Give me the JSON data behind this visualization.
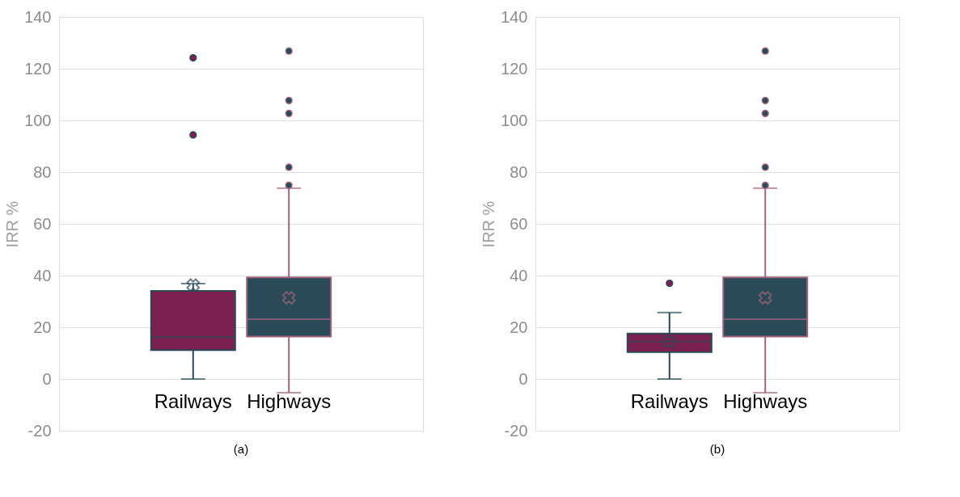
{
  "chart_data": [
    {
      "type": "box",
      "title": "(a)",
      "ylabel": "IRR %",
      "categories": [
        "Railways",
        "Highways"
      ],
      "colors": [
        "#7b1f4e",
        "#2a4a57"
      ],
      "boxes": [
        {
          "low": 0,
          "q1": 11.2,
          "median": 16.2,
          "q3": 34.1,
          "high": 36.9,
          "mean": 36.3,
          "outliers": [
            94.4,
            124.2
          ]
        },
        {
          "low": -5.3,
          "q1": 16.4,
          "median": 23.1,
          "q3": 39.3,
          "high": 73.8,
          "mean": 31.4,
          "outliers": [
            74.9,
            81.9,
            102.7,
            107.7,
            126.8
          ]
        }
      ],
      "ylim": [
        -20,
        140
      ],
      "yticks": [
        -20,
        0,
        20,
        40,
        60,
        80,
        100,
        120,
        140
      ],
      "grid": "y"
    },
    {
      "type": "box",
      "title": "(b)",
      "ylabel": "IRR %",
      "categories": [
        "Railways",
        "Highways"
      ],
      "colors": [
        "#7b1f4e",
        "#2a4a57"
      ],
      "boxes": [
        {
          "low": 0,
          "q1": 10.4,
          "median": 14.5,
          "q3": 17.6,
          "high": 25.7,
          "mean": 14.5,
          "outliers": [
            37.0
          ]
        },
        {
          "low": -5.3,
          "q1": 16.4,
          "median": 23.1,
          "q3": 39.3,
          "high": 73.8,
          "mean": 31.4,
          "outliers": [
            74.9,
            81.9,
            102.7,
            107.7,
            126.8
          ]
        }
      ],
      "ylim": [
        -20,
        140
      ],
      "yticks": [
        -20,
        0,
        20,
        40,
        60,
        80,
        100,
        120,
        140
      ],
      "grid": "y"
    }
  ]
}
